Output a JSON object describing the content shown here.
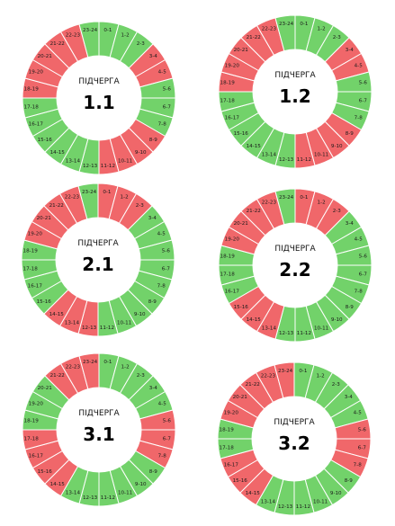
{
  "colors": {
    "on": "#72d26a",
    "off": "#f0676a",
    "separator": "#ffffff",
    "center": "#ffffff"
  },
  "hours": [
    "0-1",
    "1-2",
    "2-3",
    "3-4",
    "4-5",
    "5-6",
    "6-7",
    "7-8",
    "8-9",
    "9-10",
    "10-11",
    "11-12",
    "12-13",
    "13-14",
    "14-15",
    "15-16",
    "16-17",
    "17-18",
    "18-19",
    "19-20",
    "20-21",
    "21-22",
    "22-23",
    "23-24"
  ],
  "subqueues": [
    {
      "subtitle": "ПІДЧЕРГА",
      "number": "1.1",
      "off_hours": [
        "3-4",
        "4-5",
        "8-9",
        "9-10",
        "10-11",
        "11-12",
        "18-19",
        "19-20",
        "20-21",
        "21-22",
        "22-23"
      ]
    },
    {
      "subtitle": "ПІДЧЕРГА",
      "number": "1.2",
      "off_hours": [
        "3-4",
        "4-5",
        "8-9",
        "9-10",
        "10-11",
        "11-12",
        "18-19",
        "19-20",
        "20-21",
        "21-22",
        "22-23"
      ]
    },
    {
      "subtitle": "ПІДЧЕРГА",
      "number": "2.1",
      "off_hours": [
        "0-1",
        "1-2",
        "2-3",
        "12-13",
        "13-14",
        "14-15",
        "19-20",
        "20-21",
        "21-22",
        "22-23"
      ]
    },
    {
      "subtitle": "ПІДЧЕРГА",
      "number": "2.2",
      "off_hours": [
        "0-1",
        "1-2",
        "2-3",
        "13-14",
        "14-15",
        "15-16",
        "19-20",
        "20-21",
        "21-22",
        "22-23"
      ]
    },
    {
      "subtitle": "ПІДЧЕРГА",
      "number": "3.1",
      "off_hours": [
        "5-6",
        "6-7",
        "7-8",
        "14-15",
        "15-16",
        "16-17",
        "17-18",
        "21-22",
        "22-23",
        "23-24"
      ]
    },
    {
      "subtitle": "ПІДЧЕРГА",
      "number": "3.2",
      "off_hours": [
        "5-6",
        "6-7",
        "7-8",
        "14-15",
        "15-16",
        "16-17",
        "19-20",
        "20-21",
        "21-22",
        "22-23",
        "23-24"
      ]
    }
  ]
}
